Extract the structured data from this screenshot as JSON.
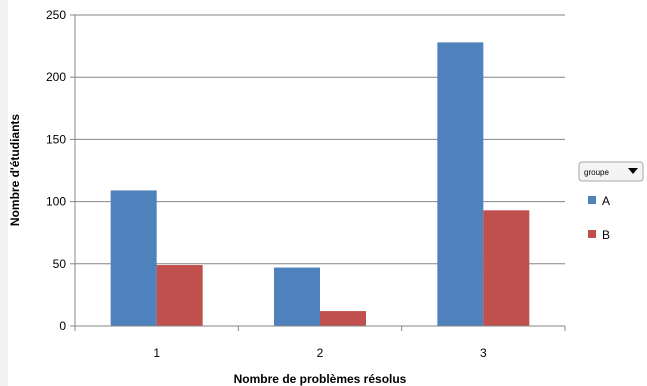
{
  "chart_data": {
    "type": "bar",
    "categories": [
      "1",
      "2",
      "3"
    ],
    "series": [
      {
        "name": "A",
        "values": [
          109,
          47,
          228
        ],
        "color": "#4f81bd"
      },
      {
        "name": "B",
        "values": [
          49,
          12,
          93
        ],
        "color": "#c0504d"
      }
    ],
    "xlabel": "Nombre de problèmes résolus",
    "ylabel": "Nombre d'étudiants",
    "ylim": [
      0,
      250
    ],
    "yticks": [
      0,
      50,
      100,
      150,
      200,
      250
    ],
    "grid": true,
    "legend_placement": "right",
    "legend_header": "groupe",
    "legend_header_icon": "dropdown-triangle-icon"
  }
}
